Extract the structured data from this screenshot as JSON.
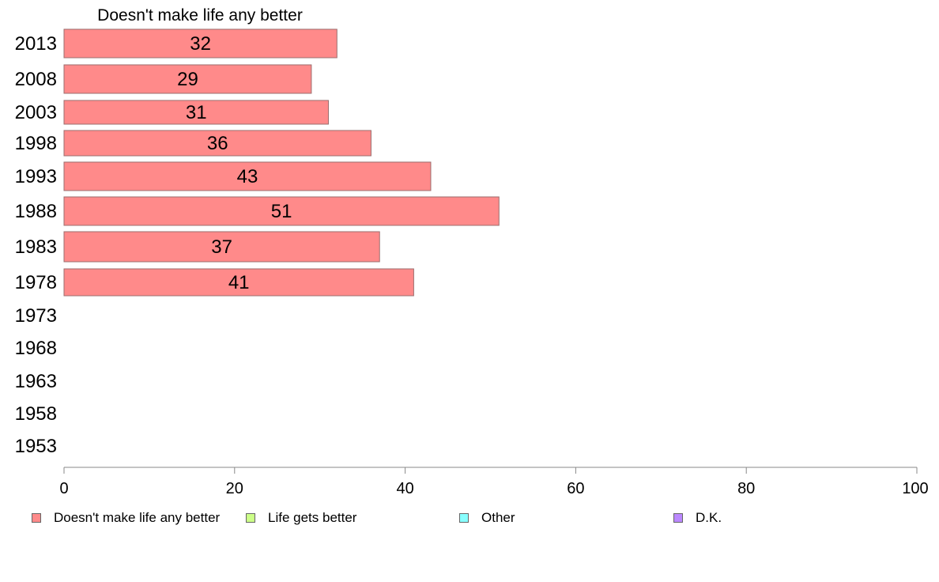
{
  "chart_data": {
    "type": "bar",
    "orientation": "horizontal",
    "title": "Doesn't make life any better",
    "categories": [
      "2013",
      "2008",
      "2003",
      "1998",
      "1993",
      "1988",
      "1983",
      "1978",
      "1973",
      "1968",
      "1963",
      "1958",
      "1953"
    ],
    "series": [
      {
        "name": "Doesn't make life any better",
        "color": "#ff8a8a",
        "values": [
          32,
          29,
          31,
          36,
          43,
          51,
          37,
          41,
          null,
          null,
          null,
          null,
          null
        ]
      }
    ],
    "xlim": [
      0,
      100
    ],
    "xticks": [
      0,
      20,
      40,
      60,
      80,
      100
    ],
    "xlabel": "",
    "ylabel": "",
    "grid": false,
    "legend_position": "bottom",
    "legend": [
      {
        "label": "Doesn't make life any better",
        "color": "#ff8a8a"
      },
      {
        "label": "Life gets better",
        "color": "#ccff88"
      },
      {
        "label": "Other",
        "color": "#88ffff"
      },
      {
        "label": "D.K.",
        "color": "#bb88ff"
      }
    ]
  }
}
